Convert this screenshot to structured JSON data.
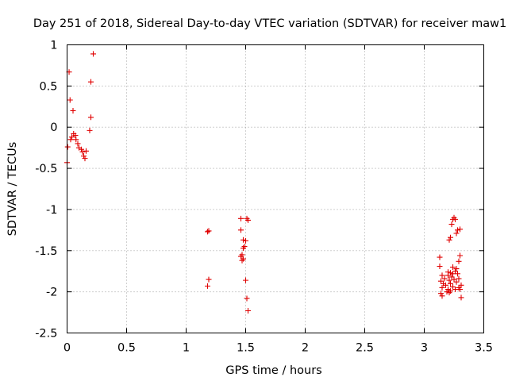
{
  "chart_data": {
    "type": "scatter",
    "title": "Day 251 of 2018, Sidereal Day-to-day VTEC variation (SDTVAR) for receiver maw1",
    "xlabel": "GPS time / hours",
    "ylabel": "SDTVAR / TECUs",
    "xlim": [
      0,
      3.5
    ],
    "ylim": [
      -2.5,
      1
    ],
    "xticks": [
      0,
      0.5,
      1,
      1.5,
      2,
      2.5,
      3,
      3.5
    ],
    "xtick_labels": [
      "0",
      "0.5",
      "1",
      "1.5",
      "2",
      "2.5",
      "3",
      "3.5"
    ],
    "yticks": [
      1,
      0.5,
      0,
      -0.5,
      -1,
      -1.5,
      -2,
      -2.5
    ],
    "ytick_labels": [
      "1",
      "0.5",
      "0",
      "-0.5",
      "-1",
      "-1.5",
      "-2",
      "-2.5"
    ],
    "grid": true,
    "marker": "+",
    "color": "#e00000",
    "series": [
      {
        "name": "SDTVAR",
        "points": [
          [
            0.22,
            0.89
          ],
          [
            0.017,
            0.67
          ],
          [
            0.2,
            0.55
          ],
          [
            0.025,
            0.33
          ],
          [
            0.05,
            0.2
          ],
          [
            0.2,
            0.12
          ],
          [
            0.19,
            -0.04
          ],
          [
            0.055,
            -0.08
          ],
          [
            0.07,
            -0.1
          ],
          [
            0.04,
            -0.12
          ],
          [
            0.03,
            -0.15
          ],
          [
            0.075,
            -0.15
          ],
          [
            0.09,
            -0.2
          ],
          [
            0.1,
            -0.25
          ],
          [
            0.12,
            -0.27
          ],
          [
            0.16,
            -0.29
          ],
          [
            0.13,
            -0.3
          ],
          [
            0.14,
            -0.35
          ],
          [
            0.15,
            -0.38
          ],
          [
            0.005,
            -0.24
          ],
          [
            0.0,
            -0.43
          ],
          [
            1.19,
            -1.26
          ],
          [
            1.18,
            -1.27
          ],
          [
            1.19,
            -1.85
          ],
          [
            1.18,
            -1.93
          ],
          [
            1.46,
            -1.11
          ],
          [
            1.51,
            -1.11
          ],
          [
            1.52,
            -1.13
          ],
          [
            1.46,
            -1.25
          ],
          [
            1.48,
            -1.37
          ],
          [
            1.5,
            -1.38
          ],
          [
            1.49,
            -1.45
          ],
          [
            1.48,
            -1.47
          ],
          [
            1.47,
            -1.55
          ],
          [
            1.46,
            -1.57
          ],
          [
            1.48,
            -1.6
          ],
          [
            1.47,
            -1.62
          ],
          [
            1.5,
            -1.86
          ],
          [
            1.51,
            -2.08
          ],
          [
            1.52,
            -2.23
          ],
          [
            3.25,
            -1.1
          ],
          [
            3.24,
            -1.12
          ],
          [
            3.26,
            -1.12
          ],
          [
            3.23,
            -1.18
          ],
          [
            3.28,
            -1.25
          ],
          [
            3.3,
            -1.24
          ],
          [
            3.27,
            -1.29
          ],
          [
            3.22,
            -1.34
          ],
          [
            3.21,
            -1.37
          ],
          [
            3.3,
            -1.56
          ],
          [
            3.13,
            -1.58
          ],
          [
            3.29,
            -1.63
          ],
          [
            3.13,
            -1.69
          ],
          [
            3.24,
            -1.7
          ],
          [
            3.27,
            -1.72
          ],
          [
            3.26,
            -1.75
          ],
          [
            3.2,
            -1.76
          ],
          [
            3.22,
            -1.77
          ],
          [
            3.24,
            -1.78
          ],
          [
            3.28,
            -1.78
          ],
          [
            3.15,
            -1.8
          ],
          [
            3.2,
            -1.8
          ],
          [
            3.23,
            -1.82
          ],
          [
            3.17,
            -1.84
          ],
          [
            3.29,
            -1.84
          ],
          [
            3.25,
            -1.85
          ],
          [
            3.21,
            -1.86
          ],
          [
            3.14,
            -1.87
          ],
          [
            3.27,
            -1.88
          ],
          [
            3.16,
            -1.9
          ],
          [
            3.22,
            -1.9
          ],
          [
            3.18,
            -1.92
          ],
          [
            3.31,
            -1.92
          ],
          [
            3.24,
            -1.94
          ],
          [
            3.15,
            -1.95
          ],
          [
            3.29,
            -1.95
          ],
          [
            3.2,
            -1.97
          ],
          [
            3.26,
            -1.97
          ],
          [
            3.3,
            -1.97
          ],
          [
            3.22,
            -1.99
          ],
          [
            3.19,
            -2.0
          ],
          [
            3.21,
            -2.01
          ],
          [
            3.14,
            -2.02
          ],
          [
            3.15,
            -2.05
          ],
          [
            3.31,
            -2.07
          ]
        ]
      }
    ]
  }
}
